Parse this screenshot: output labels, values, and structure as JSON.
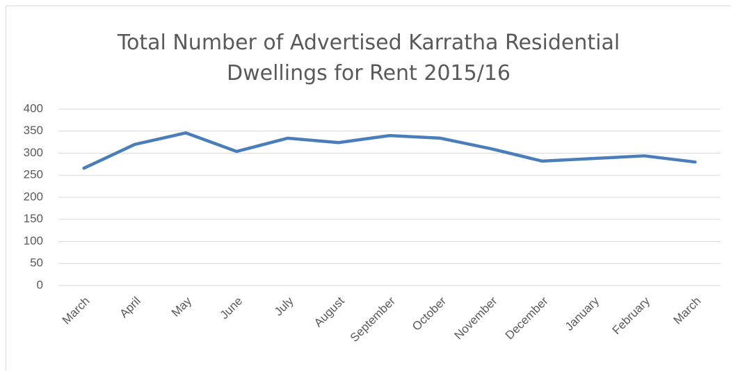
{
  "chart_data": {
    "type": "line",
    "title": "Total Number of Advertised Karratha Residential Dwellings for Rent 2015/16",
    "categories": [
      "March",
      "April",
      "May",
      "June",
      "July",
      "August",
      "September",
      "October",
      "November",
      "December",
      "January",
      "February",
      "March"
    ],
    "values": [
      266,
      320,
      346,
      304,
      334,
      324,
      340,
      334,
      310,
      282,
      288,
      294,
      280
    ],
    "color": "#4a7ebb",
    "ylim": [
      0,
      400
    ],
    "yticks": [
      0,
      50,
      100,
      150,
      200,
      250,
      300,
      350,
      400
    ],
    "grid": true
  }
}
